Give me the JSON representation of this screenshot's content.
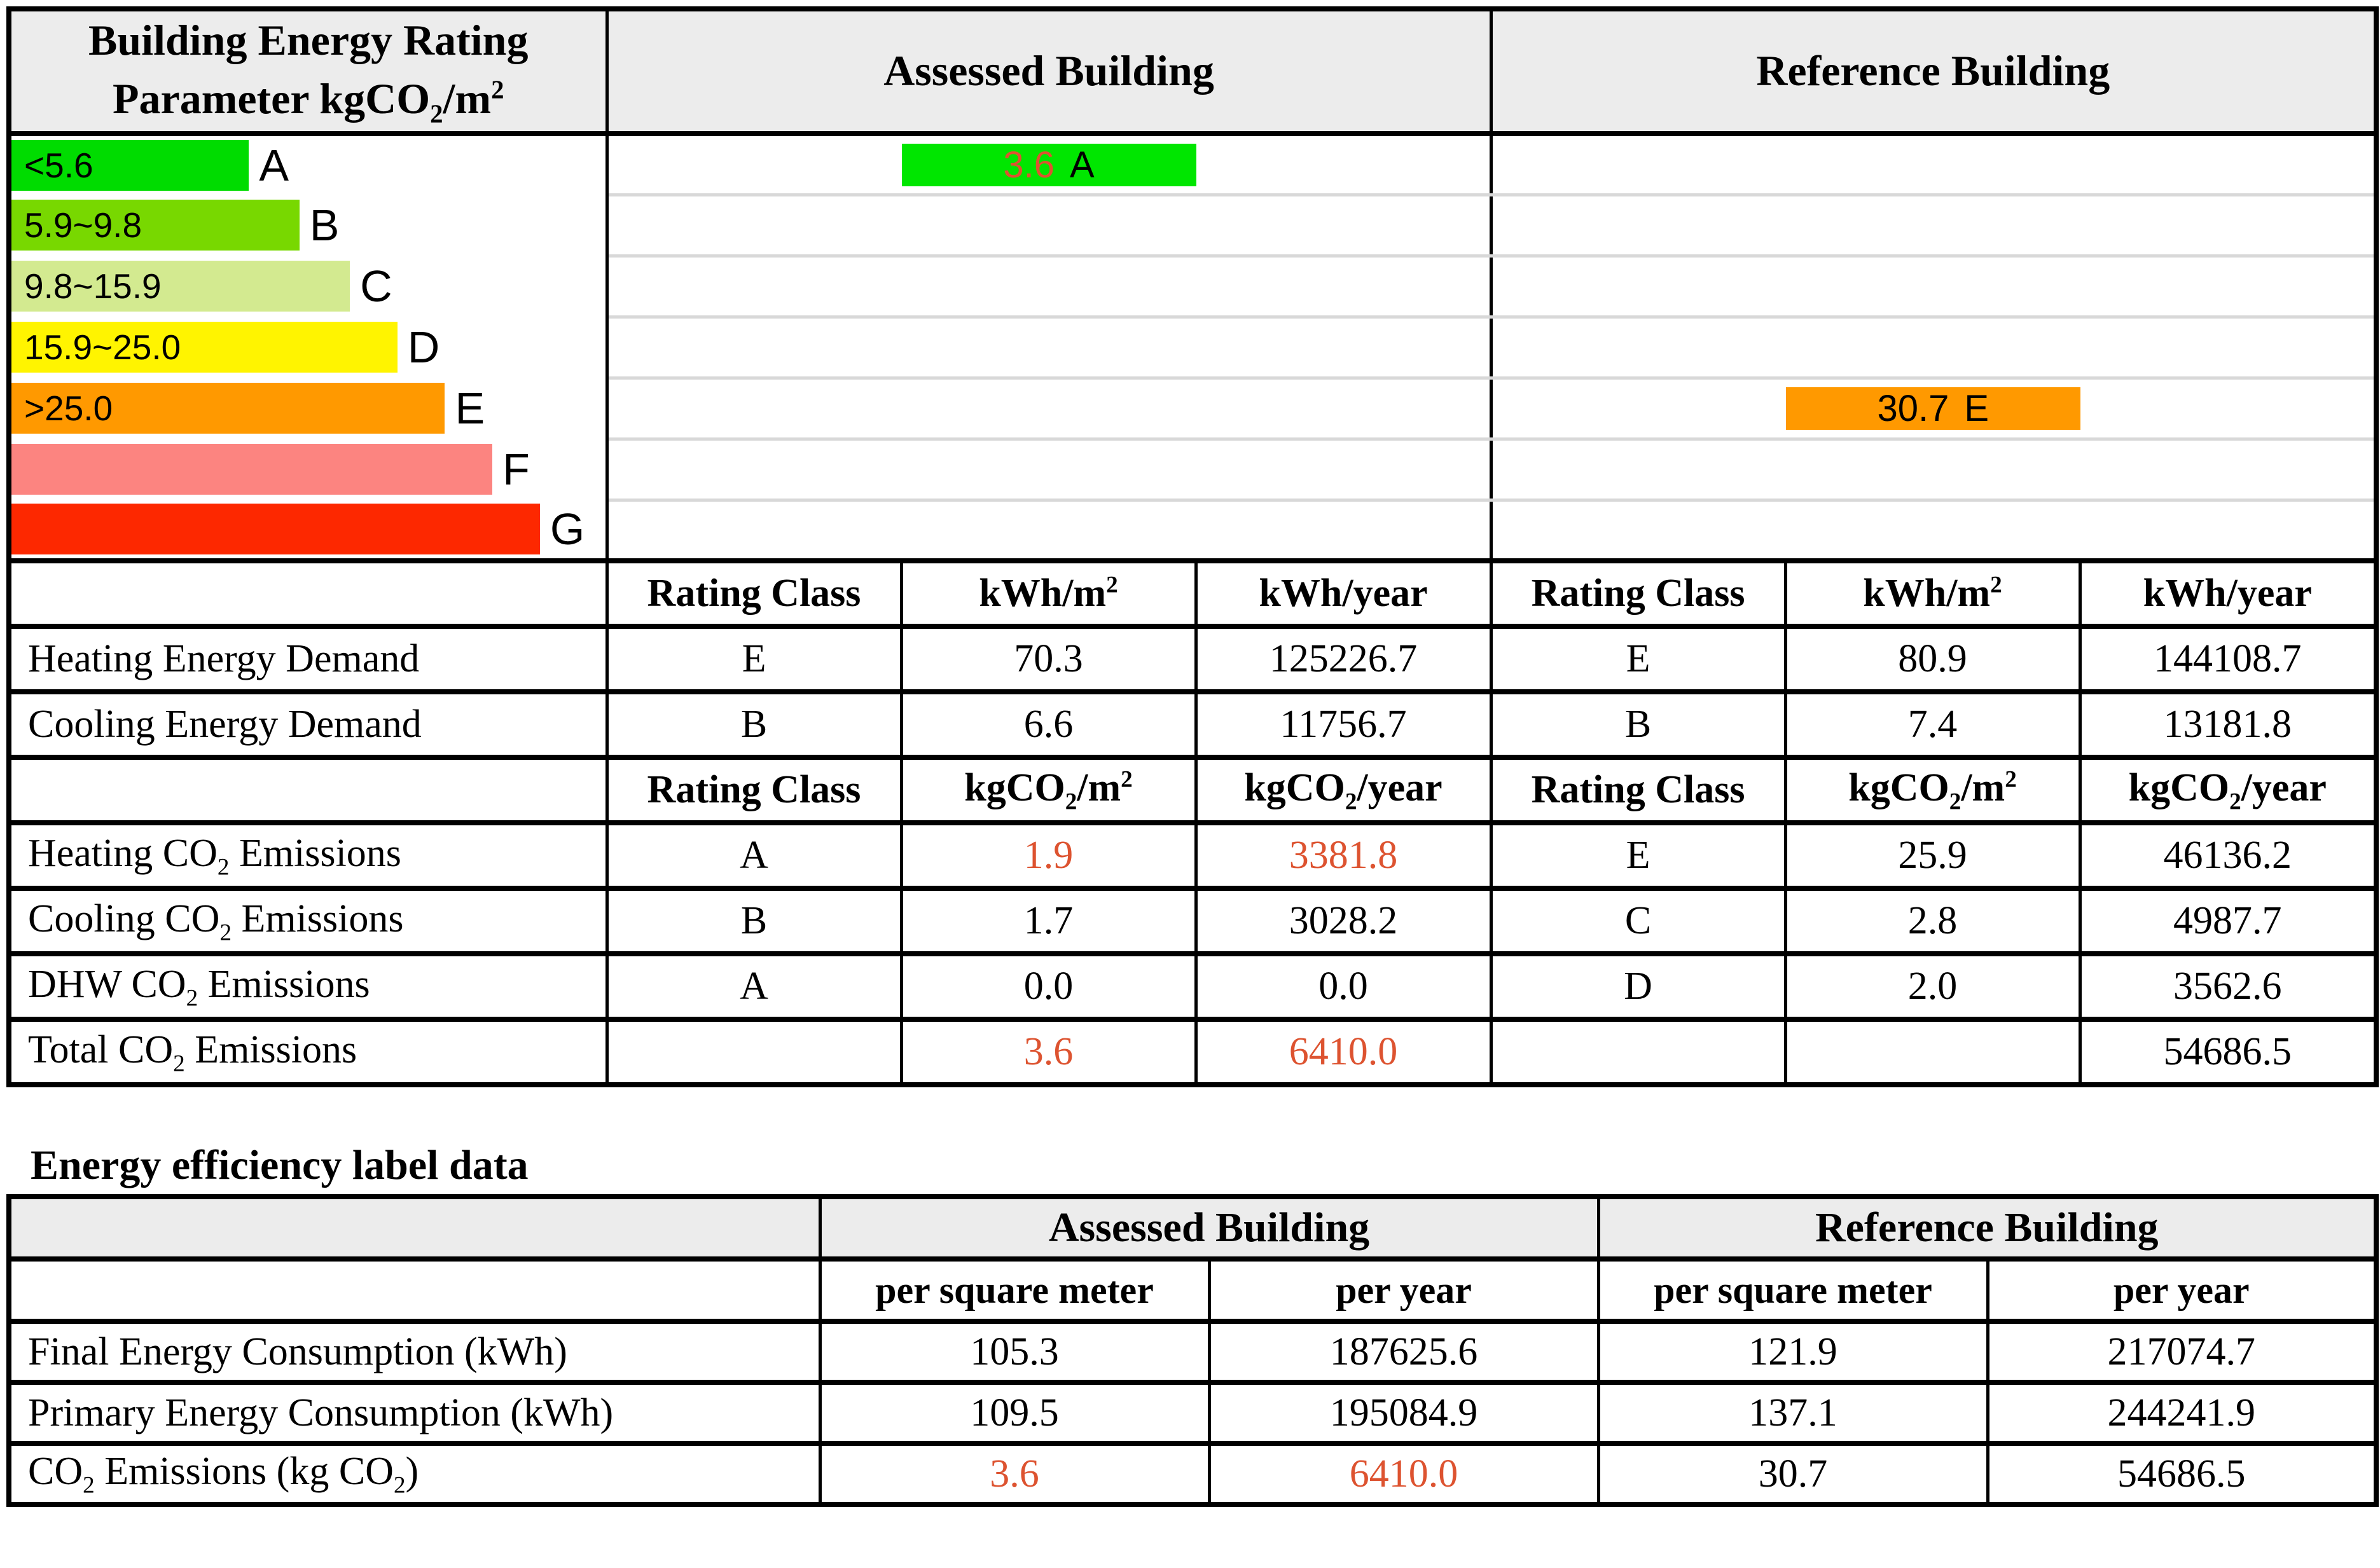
{
  "colors": {
    "accent_red": "#DD5330",
    "header_bg": "#ECECEC",
    "grid_black": "#000000",
    "row_separator": "#D8D8D8"
  },
  "rating_table": {
    "header": {
      "title_line1": "Building Energy Rating",
      "title_line2_pre": "Parameter kgCO",
      "title_line2_sub": "2",
      "title_line2_mid": "/m",
      "title_line2_sup": "2",
      "assessed": "Assessed Building",
      "reference": "Reference Building"
    },
    "scale_rows": [
      {
        "letter": "A",
        "range": "<5.6",
        "color": "#00DC00",
        "width_pct": 40
      },
      {
        "letter": "B",
        "range": "5.9~9.8",
        "color": "#78D800",
        "width_pct": 48.5
      },
      {
        "letter": "C",
        "range": "9.8~15.9",
        "color": "#D3EA90",
        "width_pct": 57
      },
      {
        "letter": "D",
        "range": "15.9~25.0",
        "color": "#FFF400",
        "width_pct": 65
      },
      {
        "letter": "E",
        "range": ">25.0",
        "color": "#FF9900",
        "width_pct": 73
      },
      {
        "letter": "F",
        "range": "",
        "color": "#FC8480",
        "width_pct": 81
      },
      {
        "letter": "G",
        "range": "",
        "color": "#FD2800",
        "width_pct": 89
      }
    ],
    "assessed_marker": {
      "value": "3.6",
      "rating": "A",
      "row_letter": "A",
      "bar_color": "#00E600",
      "value_color": "#DD5330"
    },
    "reference_marker": {
      "value": "30.7",
      "rating": "E",
      "row_letter": "E",
      "bar_color": "#FF9900",
      "value_color": "#000000"
    },
    "energy_headers": {
      "rating_class": "Rating Class",
      "per_m2_pre": "kWh/m",
      "per_m2_sup": "2",
      "per_year": "kWh/year"
    },
    "energy_rows": [
      {
        "label": "Heating Energy Demand",
        "a_class": "E",
        "a_m2": "70.3",
        "a_year": "125226.7",
        "r_class": "E",
        "r_m2": "80.9",
        "r_year": "144108.7"
      },
      {
        "label": "Cooling Energy Demand",
        "a_class": "B",
        "a_m2": "6.6",
        "a_year": "11756.7",
        "r_class": "B",
        "r_m2": "7.4",
        "r_year": "13181.8"
      }
    ],
    "co2_headers": {
      "rating_class": "Rating Class",
      "per_m2_pre": "kgCO",
      "per_m2_sub": "2",
      "per_m2_mid": "/m",
      "per_m2_sup": "2",
      "per_year_pre": "kgCO",
      "per_year_sub": "2",
      "per_year_mid": "/year"
    },
    "co2_rows": [
      {
        "label_pre": "Heating CO",
        "label_sub": "2",
        "label_post": " Emissions",
        "a_class": "A",
        "a_m2": "1.9",
        "a_year": "3381.8",
        "r_class": "E",
        "r_m2": "25.9",
        "r_year": "46136.2"
      },
      {
        "label_pre": "Cooling CO",
        "label_sub": "2",
        "label_post": " Emissions",
        "a_class": "B",
        "a_m2": "1.7",
        "a_year": "3028.2",
        "r_class": "C",
        "r_m2": "2.8",
        "r_year": "4987.7"
      },
      {
        "label_pre": "DHW CO",
        "label_sub": "2",
        "label_post": " Emissions",
        "a_class": "A",
        "a_m2": "0.0",
        "a_year": "0.0",
        "r_class": "D",
        "r_m2": "2.0",
        "r_year": "3562.6"
      },
      {
        "label_pre": "Total CO",
        "label_sub": "2",
        "label_post": " Emissions",
        "a_class": "",
        "a_m2": "3.6",
        "a_year": "6410.0",
        "r_class": "",
        "r_m2": "",
        "r_year": "54686.5"
      }
    ]
  },
  "label_section": {
    "title": "Energy efficiency label data",
    "headers": {
      "assessed": "Assessed Building",
      "reference": "Reference Building",
      "per_m2": "per square meter",
      "per_year": "per year"
    },
    "rows": [
      {
        "label": "Final Energy Consumption (kWh)",
        "a_m2": "105.3",
        "a_year": "187625.6",
        "r_m2": "121.9",
        "r_year": "217074.7"
      },
      {
        "label": "Primary Energy Consumption (kWh)",
        "a_m2": "109.5",
        "a_year": "195084.9",
        "r_m2": "137.1",
        "r_year": "244241.9"
      }
    ],
    "co2_row": {
      "label_pre": "CO",
      "label_sub": "2",
      "label_mid": " Emissions (kg CO",
      "label_sub2": "2",
      "label_post": ")",
      "a_m2": "3.6",
      "a_year": "6410.0",
      "r_m2": "30.7",
      "r_year": "54686.5"
    }
  }
}
